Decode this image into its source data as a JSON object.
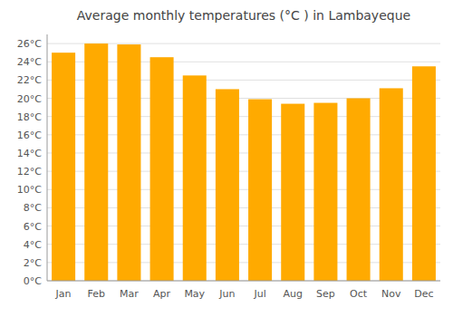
{
  "chart_data": {
    "type": "bar",
    "title": "Average monthly temperatures (°C ) in Lambayeque",
    "categories": [
      "Jan",
      "Feb",
      "Mar",
      "Apr",
      "May",
      "Jun",
      "Jul",
      "Aug",
      "Sep",
      "Oct",
      "Nov",
      "Dec"
    ],
    "values": [
      25.0,
      26.0,
      25.9,
      24.5,
      22.5,
      21.0,
      19.9,
      19.4,
      19.5,
      20.0,
      21.1,
      23.5
    ],
    "color": "#FFAA00",
    "ylim": [
      0,
      27
    ],
    "yticks": [
      {
        "value": 0,
        "label": "0°C"
      },
      {
        "value": 2,
        "label": "2°C"
      },
      {
        "value": 4,
        "label": "4°C"
      },
      {
        "value": 6,
        "label": "6°C"
      },
      {
        "value": 8,
        "label": "8°C"
      },
      {
        "value": 10,
        "label": "10°C"
      },
      {
        "value": 12,
        "label": "12°C"
      },
      {
        "value": 14,
        "label": "14°C"
      },
      {
        "value": 16,
        "label": "16°C"
      },
      {
        "value": 18,
        "label": "18°C"
      },
      {
        "value": 20,
        "label": "20°C"
      },
      {
        "value": 22,
        "label": "22°C"
      },
      {
        "value": 24,
        "label": "24°C"
      },
      {
        "value": 26,
        "label": "26°C"
      }
    ],
    "grid": true
  }
}
